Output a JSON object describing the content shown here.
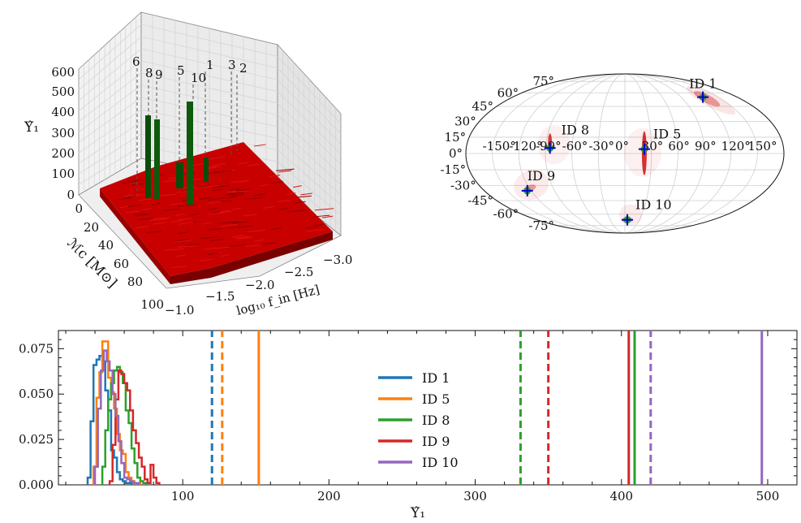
{
  "chart_data": [
    {
      "type": "bar3d",
      "zlabel": "Υ̂₁",
      "ylabel": "ℳc [M⊙]",
      "xlabel": "log₁₀ f_in [Hz]",
      "zticks": [
        "0",
        "100",
        "200",
        "300",
        "400",
        "500",
        "600"
      ],
      "yticks": [
        "0",
        "20",
        "40",
        "60",
        "80",
        "100"
      ],
      "xticks": [
        "−1.0",
        "−1.5",
        "−2.0",
        "−2.5",
        "−3.0"
      ],
      "zlim": [
        0,
        600
      ],
      "ylim": [
        0,
        100
      ],
      "xlim": [
        -1.0,
        -3.0
      ],
      "background_color": "#cc0000",
      "highlight_color": "#0a4d0a",
      "peak_labels": [
        "6",
        "8",
        "9",
        "5",
        "10",
        "1",
        "3",
        "2"
      ]
    },
    {
      "type": "skymap",
      "projection": "mollweide",
      "lon_ticks": [
        "-150°",
        "-120°",
        "-90°",
        "-60°",
        "-30°",
        "0°",
        "30°",
        "60°",
        "90°",
        "120°",
        "150°"
      ],
      "lat_ticks": [
        "75°",
        "60°",
        "45°",
        "30°",
        "15°",
        "0°",
        "-15°",
        "-30°",
        "-45°",
        "-60°",
        "-75°"
      ],
      "sources": [
        {
          "label": "ID 1",
          "lon": 125,
          "lat": 55
        },
        {
          "label": "ID 8",
          "lon": -85,
          "lat": 5
        },
        {
          "label": "ID 5",
          "lon": 22,
          "lat": 4
        },
        {
          "label": "ID 9",
          "lon": -125,
          "lat": -35
        },
        {
          "label": "ID 10",
          "lon": 5,
          "lat": -67
        }
      ],
      "marker_color": "#0000cc",
      "injection_color": "#2ca02c",
      "posterior_color": "#cc0000"
    },
    {
      "type": "histogram",
      "xlabel": "Υ̂₁",
      "xlim": [
        15,
        520
      ],
      "ylim": [
        0,
        0.085
      ],
      "xticks": [
        100,
        200,
        300,
        400,
        500
      ],
      "yticks": [
        "0.000",
        "0.025",
        "0.050",
        "0.075"
      ],
      "legend_position": "center",
      "series": [
        {
          "name": "ID 1",
          "color": "#1f77b4",
          "bins": [
            35,
            37,
            39,
            41,
            43,
            45,
            47,
            49,
            51,
            53,
            55,
            57,
            59,
            61,
            63,
            65
          ],
          "counts": [
            0.004,
            0.035,
            0.066,
            0.069,
            0.071,
            0.068,
            0.052,
            0.041,
            0.019,
            0.015,
            0.007,
            0.003,
            0.002,
            0.001,
            0.001
          ],
          "threshold_dashed": 120
        },
        {
          "name": "ID 5",
          "color": "#ff7f0e",
          "bins": [
            39,
            41,
            43,
            45,
            47,
            49,
            51,
            53,
            55,
            57,
            59,
            61,
            63,
            65,
            67,
            69,
            71
          ],
          "counts": [
            0.01,
            0.048,
            0.062,
            0.079,
            0.079,
            0.059,
            0.051,
            0.042,
            0.028,
            0.019,
            0.017,
            0.007,
            0.004,
            0.002,
            0.001,
            0.001
          ],
          "threshold_dashed": 127,
          "threshold_solid": 152
        },
        {
          "name": "ID 8",
          "color": "#2ca02c",
          "bins": [
            45,
            47,
            49,
            51,
            53,
            55,
            57,
            59,
            61,
            63,
            65,
            67,
            69,
            71,
            73,
            75
          ],
          "counts": [
            0.01,
            0.03,
            0.047,
            0.056,
            0.063,
            0.065,
            0.062,
            0.056,
            0.041,
            0.034,
            0.02,
            0.012,
            0.004,
            0.002,
            0.001
          ],
          "threshold_dashed": 331,
          "threshold_solid": 409
        },
        {
          "name": "ID 9",
          "color": "#d62728",
          "bins": [
            50,
            52,
            54,
            56,
            58,
            60,
            62,
            64,
            66,
            68,
            70,
            72,
            74,
            76,
            78,
            80,
            82,
            84
          ],
          "counts": [
            0.002,
            0.022,
            0.047,
            0.063,
            0.061,
            0.056,
            0.052,
            0.041,
            0.03,
            0.023,
            0.015,
            0.01,
            0.003,
            0.001,
            0.011,
            0.004,
            0.001
          ],
          "threshold_dashed": 350,
          "threshold_solid": 405
        },
        {
          "name": "ID 10",
          "color": "#9467bd",
          "bins": [
            40,
            42,
            44,
            46,
            48,
            50,
            52,
            54,
            56,
            58,
            60,
            62,
            64,
            66,
            68,
            70
          ],
          "counts": [
            0.01,
            0.042,
            0.063,
            0.074,
            0.068,
            0.063,
            0.05,
            0.038,
            0.024,
            0.012,
            0.004,
            0.003,
            0.002,
            0.001,
            0.001
          ],
          "threshold_dashed": 420,
          "threshold_solid": 496
        }
      ]
    }
  ]
}
